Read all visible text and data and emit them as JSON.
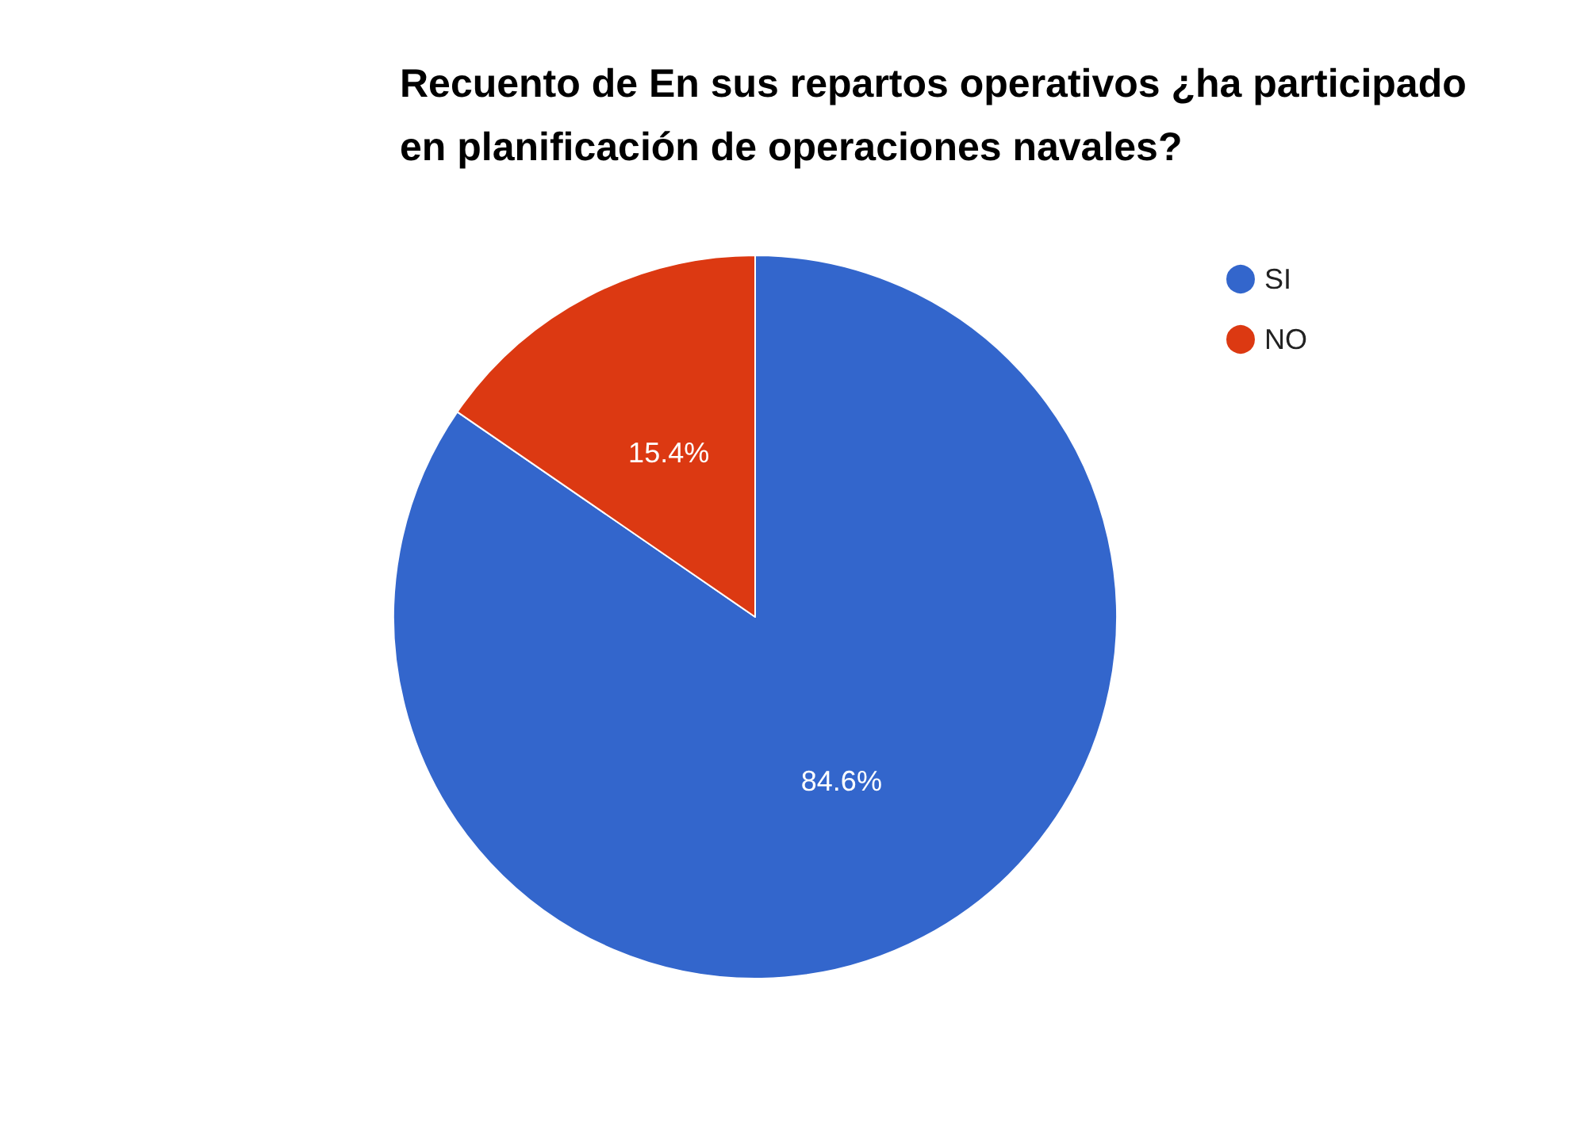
{
  "chart_data": {
    "type": "pie",
    "title": "Recuento de En sus repartos operativos ¿ha participado en planificación de operaciones navales?",
    "categories": [
      "SI",
      "NO"
    ],
    "values": [
      84.6,
      15.4
    ],
    "value_labels": [
      "84.6%",
      "15.4%"
    ],
    "colors": [
      "#3366cc",
      "#dc3912"
    ],
    "legend": "top right"
  }
}
